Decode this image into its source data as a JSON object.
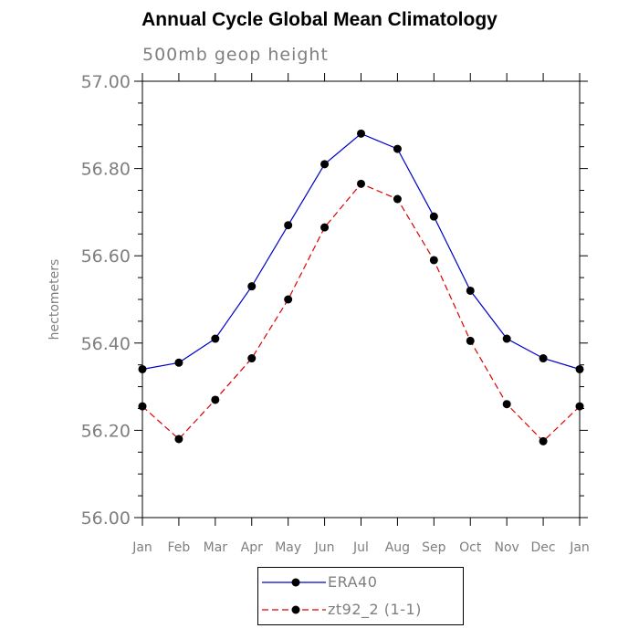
{
  "chart_data": {
    "type": "line",
    "title": "Annual Cycle Global Mean Climatology",
    "subtitle": "500mb geop height",
    "xlabel": "",
    "ylabel": "hectometers",
    "categories": [
      "Jan",
      "Feb",
      "Mar",
      "Apr",
      "May",
      "Jun",
      "Jul",
      "Aug",
      "Sep",
      "Oct",
      "Nov",
      "Dec",
      "Jan"
    ],
    "ylim": [
      56.0,
      57.0
    ],
    "yticks": [
      "56.00",
      "56.20",
      "56.40",
      "56.60",
      "56.80",
      "57.00"
    ],
    "series": [
      {
        "name": "ERA40",
        "color": "#0000cc",
        "dash": "solid",
        "values": [
          56.34,
          56.355,
          56.41,
          56.53,
          56.67,
          56.81,
          56.88,
          56.845,
          56.69,
          56.52,
          56.41,
          56.365,
          56.34
        ]
      },
      {
        "name": "zt92_2 (1-1)",
        "color": "#dd0000",
        "dash": "dashed",
        "values": [
          56.255,
          56.18,
          56.27,
          56.365,
          56.5,
          56.665,
          56.765,
          56.73,
          56.59,
          56.405,
          56.26,
          56.175,
          56.255
        ]
      }
    ],
    "legend_position": "bottom-center",
    "grid": false
  }
}
